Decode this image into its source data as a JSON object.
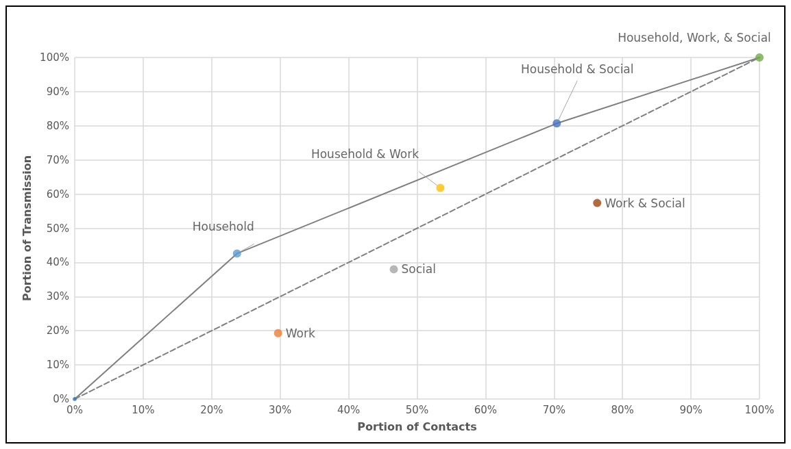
{
  "chart_data": {
    "type": "scatter",
    "xlabel": "Portion of Contacts",
    "ylabel": "Portion of Transmission",
    "xlim": [
      0,
      100
    ],
    "ylim": [
      0,
      100
    ],
    "xticks": [
      {
        "value": 0,
        "label": "0%"
      },
      {
        "value": 10,
        "label": "10%"
      },
      {
        "value": 20,
        "label": "20%"
      },
      {
        "value": 30,
        "label": "30%"
      },
      {
        "value": 40,
        "label": "40%"
      },
      {
        "value": 50,
        "label": "50%"
      },
      {
        "value": 60,
        "label": "60%"
      },
      {
        "value": 70,
        "label": "70%"
      },
      {
        "value": 80,
        "label": "80%"
      },
      {
        "value": 90,
        "label": "90%"
      },
      {
        "value": 100,
        "label": "100%"
      }
    ],
    "yticks": [
      {
        "value": 0,
        "label": "0%"
      },
      {
        "value": 10,
        "label": "10%"
      },
      {
        "value": 20,
        "label": "20%"
      },
      {
        "value": 30,
        "label": "30%"
      },
      {
        "value": 40,
        "label": "40%"
      },
      {
        "value": 50,
        "label": "50%"
      },
      {
        "value": 60,
        "label": "60%"
      },
      {
        "value": 70,
        "label": "70%"
      },
      {
        "value": 80,
        "label": "80%"
      },
      {
        "value": 90,
        "label": "90%"
      },
      {
        "value": 100,
        "label": "100%"
      }
    ],
    "grid": true,
    "legend": false,
    "marker": "circle",
    "series": [
      {
        "type": "line",
        "color": "#7f7f7f",
        "x": [
          0,
          23.7,
          70.4,
          100
        ],
        "values": [
          0,
          42.6,
          80.7,
          100
        ],
        "line_style": "solid",
        "marker": "none"
      },
      {
        "type": "line",
        "color": "#7f7f7f",
        "x": [
          0,
          100
        ],
        "values": [
          0,
          100
        ],
        "line_style": "dashed",
        "marker": "none"
      },
      {
        "color": "#2e75b6",
        "x": [
          0
        ],
        "values": [
          0
        ]
      },
      {
        "name": "Household",
        "color": "#5b9bd5",
        "x": [
          23.7
        ],
        "values": [
          42.6
        ]
      },
      {
        "name": "Work",
        "color": "#ed7d31",
        "x": [
          29.7
        ],
        "values": [
          19.3
        ]
      },
      {
        "name": "Social",
        "color": "#a5a5a5",
        "x": [
          46.6
        ],
        "values": [
          38.0
        ]
      },
      {
        "name": "Household & Work",
        "color": "#ffc000",
        "x": [
          53.4
        ],
        "values": [
          61.8
        ]
      },
      {
        "name": "Household & Social",
        "color": "#4472c4",
        "x": [
          70.4
        ],
        "values": [
          80.7
        ]
      },
      {
        "name": "Work & Social",
        "color": "#9e480e",
        "x": [
          76.3
        ],
        "values": [
          57.4
        ]
      },
      {
        "name": "Household, Work, & Social",
        "color": "#70ad47",
        "x": [
          100
        ],
        "values": [
          100
        ]
      }
    ]
  }
}
